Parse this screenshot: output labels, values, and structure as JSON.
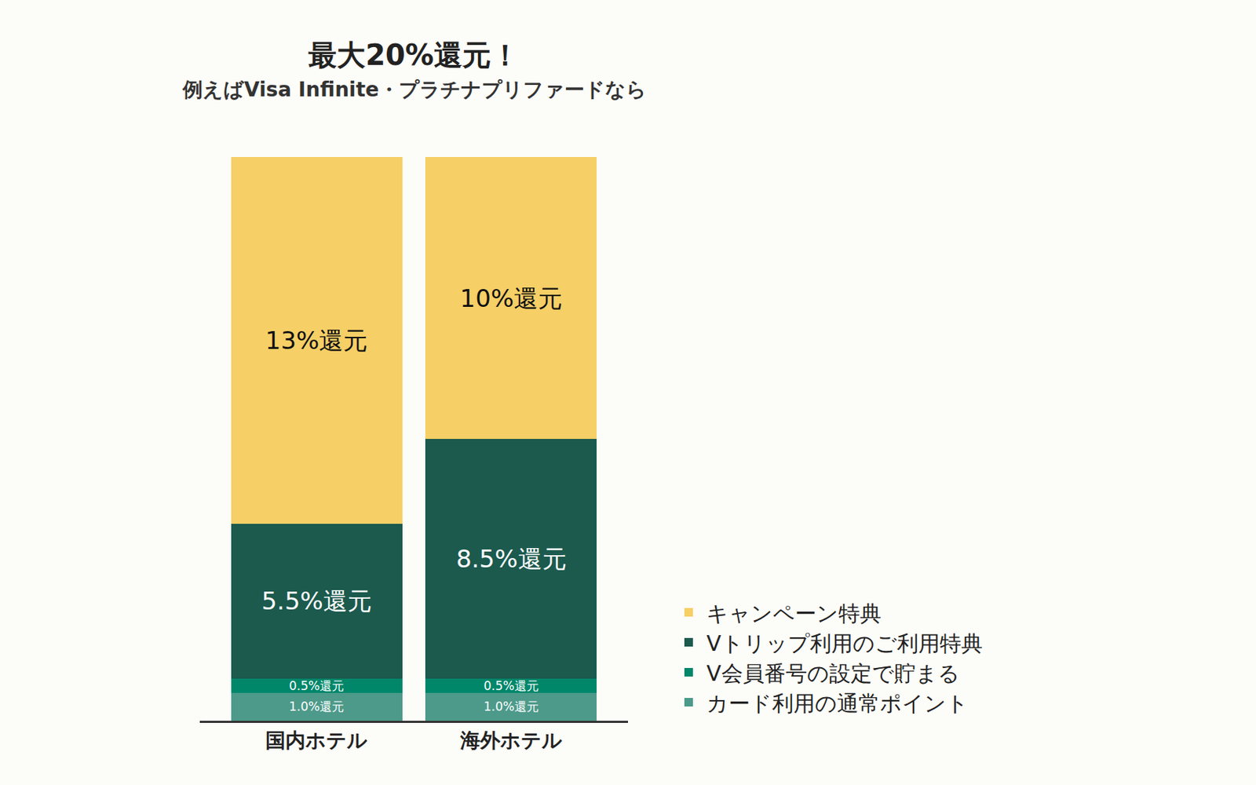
{
  "chart_data": {
    "type": "bar",
    "title": "最大20%還元！",
    "subtitle": "例えばVisa Infinite・プラチナプリファードなら",
    "categories": [
      "国内ホテル",
      "海外ホテル"
    ],
    "stacked": true,
    "data_labels": true,
    "tick_labels": "x",
    "legend": "right",
    "ylim": [
      0,
      20
    ],
    "series": [
      {
        "name": "カード利用の通常ポイント",
        "color": "#4d9a8a",
        "values": [
          1.0,
          1.0
        ],
        "value_labels": [
          "1.0%還元",
          "1.0%還元"
        ]
      },
      {
        "name": "V会員番号の設定で貯まる",
        "color": "#00876a",
        "values": [
          0.5,
          0.5
        ],
        "value_labels": [
          "0.5%還元",
          "0.5%還元"
        ]
      },
      {
        "name": "Vトリップ利用のご利用特典",
        "color": "#1c5a4e",
        "values": [
          5.5,
          8.5
        ],
        "value_labels": [
          "5.5%還元",
          "8.5%還元"
        ]
      },
      {
        "name": "キャンペーン特典",
        "color": "#f6cf66",
        "values": [
          13,
          10
        ],
        "value_labels": [
          "13%還元",
          "10%還元"
        ]
      }
    ]
  }
}
